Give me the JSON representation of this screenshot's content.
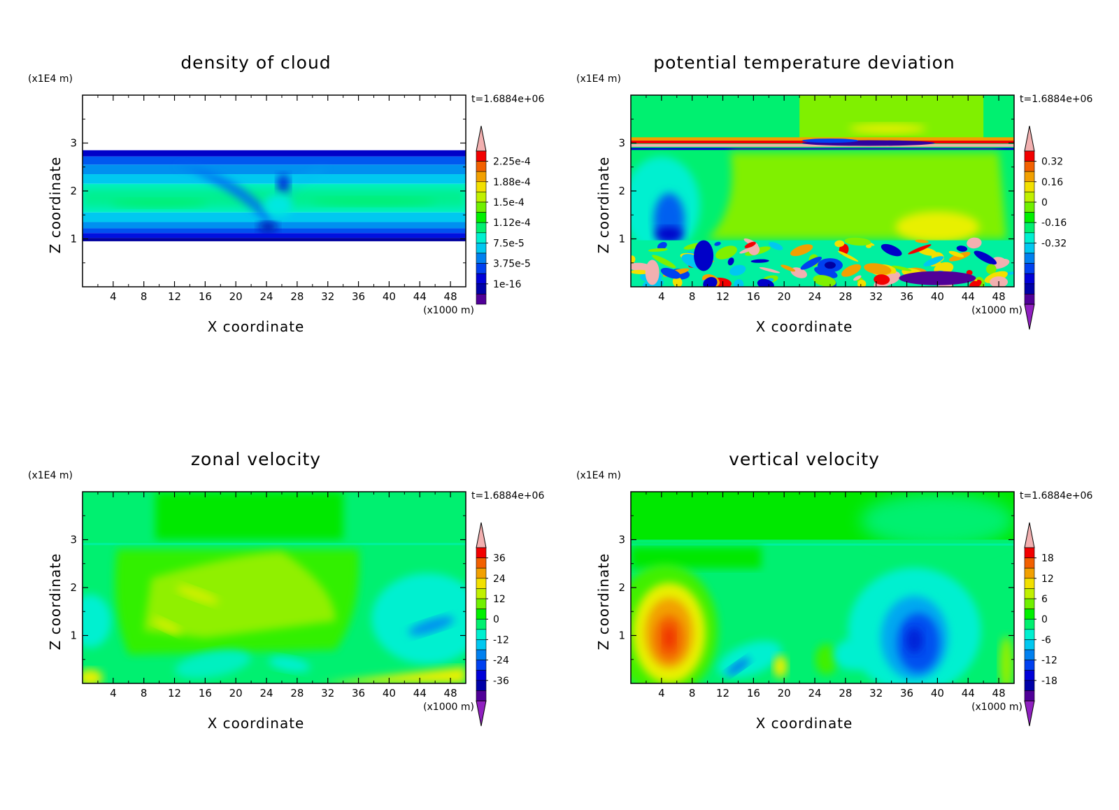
{
  "chart_data": [
    {
      "id": "cloud",
      "type": "heatmap",
      "title": "density of cloud",
      "xlabel": "X coordinate",
      "ylabel": "Z coordinate",
      "x_unit": "(x1000 m)",
      "z_unit": "(x1E4 m)",
      "time_label": "t=1.6884e+06",
      "x_ticks": [
        "4",
        "8",
        "12",
        "16",
        "20",
        "24",
        "28",
        "32",
        "36",
        "40",
        "44",
        "48"
      ],
      "z_ticks": [
        "1",
        "2",
        "3"
      ],
      "xlim": [
        0,
        50
      ],
      "zlim": [
        0,
        4
      ],
      "colorbar": {
        "labels": [
          "2.25e-4",
          "1.88e-4",
          "1.5e-4",
          "1.12e-4",
          "7.5e-5",
          "3.75e-5",
          "1e-16"
        ],
        "extend_min": false,
        "extend_max": true
      }
    },
    {
      "id": "theta",
      "type": "heatmap",
      "title": "potential temperature deviation",
      "xlabel": "X coordinate",
      "ylabel": "Z coordinate",
      "x_unit": "(x1000 m)",
      "z_unit": "(x1E4 m)",
      "time_label": "t=1.6884e+06",
      "x_ticks": [
        "4",
        "8",
        "12",
        "16",
        "20",
        "24",
        "28",
        "32",
        "36",
        "40",
        "44",
        "48"
      ],
      "z_ticks": [
        "1",
        "2",
        "3"
      ],
      "xlim": [
        0,
        50
      ],
      "zlim": [
        0,
        4
      ],
      "colorbar": {
        "labels": [
          "0.32",
          "0.16",
          "0",
          "-0.16",
          "-0.32"
        ],
        "extend_min": true,
        "extend_max": true
      }
    },
    {
      "id": "u",
      "type": "heatmap",
      "title": "zonal velocity",
      "xlabel": "X coordinate",
      "ylabel": "Z coordinate",
      "x_unit": "(x1000 m)",
      "z_unit": "(x1E4 m)",
      "time_label": "t=1.6884e+06",
      "x_ticks": [
        "4",
        "8",
        "12",
        "16",
        "20",
        "24",
        "28",
        "32",
        "36",
        "40",
        "44",
        "48"
      ],
      "z_ticks": [
        "1",
        "2",
        "3"
      ],
      "xlim": [
        0,
        50
      ],
      "zlim": [
        0,
        4
      ],
      "colorbar": {
        "labels": [
          "36",
          "24",
          "12",
          "0",
          "-12",
          "-24",
          "-36"
        ],
        "extend_min": true,
        "extend_max": true
      }
    },
    {
      "id": "w",
      "type": "heatmap",
      "title": "vertical velocity",
      "xlabel": "X coordinate",
      "ylabel": "Z coordinate",
      "x_unit": "(x1000 m)",
      "z_unit": "(x1E4 m)",
      "time_label": "t=1.6884e+06",
      "x_ticks": [
        "4",
        "8",
        "12",
        "16",
        "20",
        "24",
        "28",
        "32",
        "36",
        "40",
        "44",
        "48"
      ],
      "z_ticks": [
        "1",
        "2",
        "3"
      ],
      "xlim": [
        0,
        50
      ],
      "zlim": [
        0,
        4
      ],
      "colorbar": {
        "labels": [
          "18",
          "12",
          "6",
          "0",
          "-6",
          "-12",
          "-18"
        ],
        "extend_min": true,
        "extend_max": true
      }
    }
  ]
}
